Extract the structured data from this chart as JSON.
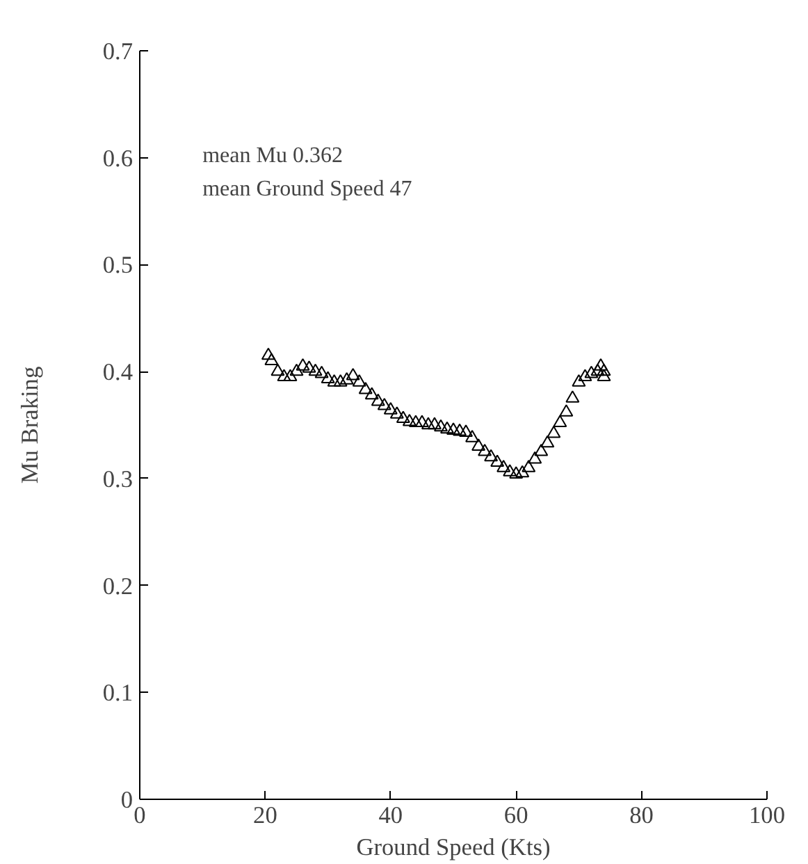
{
  "chart_data": {
    "type": "scatter",
    "xlabel": "Ground Speed (Kts)",
    "ylabel": "Mu Braking",
    "annotations": [
      "mean Mu 0.362",
      "mean Ground Speed  47"
    ],
    "x": [
      20.5,
      21,
      22,
      23,
      24,
      25,
      26,
      27,
      28,
      29,
      30,
      31,
      32,
      33,
      34,
      35,
      36,
      37,
      38,
      39,
      40,
      41,
      42,
      43,
      44,
      45,
      46,
      47,
      48,
      49,
      50,
      51,
      52,
      53,
      54,
      55,
      56,
      57,
      58,
      59,
      60,
      61,
      62,
      63,
      64,
      65,
      66,
      67,
      68,
      69,
      70,
      71,
      72,
      73,
      73.5,
      74,
      74
    ],
    "values": [
      0.415,
      0.41,
      0.4,
      0.395,
      0.395,
      0.4,
      0.405,
      0.403,
      0.4,
      0.398,
      0.393,
      0.39,
      0.39,
      0.392,
      0.396,
      0.39,
      0.383,
      0.378,
      0.372,
      0.368,
      0.364,
      0.36,
      0.356,
      0.353,
      0.352,
      0.352,
      0.35,
      0.35,
      0.348,
      0.346,
      0.345,
      0.344,
      0.343,
      0.338,
      0.33,
      0.325,
      0.32,
      0.315,
      0.31,
      0.306,
      0.304,
      0.305,
      0.31,
      0.318,
      0.325,
      0.333,
      0.342,
      0.352,
      0.362,
      0.375,
      0.39,
      0.395,
      0.398,
      0.4,
      0.405,
      0.4,
      0.395
    ],
    "color": "#000000",
    "marker": "triangle",
    "xlim": [
      0,
      100
    ],
    "ylim": [
      0,
      0.7
    ],
    "xticks": [
      0,
      20,
      40,
      60,
      80,
      100
    ],
    "yticks": [
      0,
      0.1,
      0.2,
      0.3,
      0.4,
      0.5,
      0.6,
      0.7
    ],
    "grid": false
  }
}
